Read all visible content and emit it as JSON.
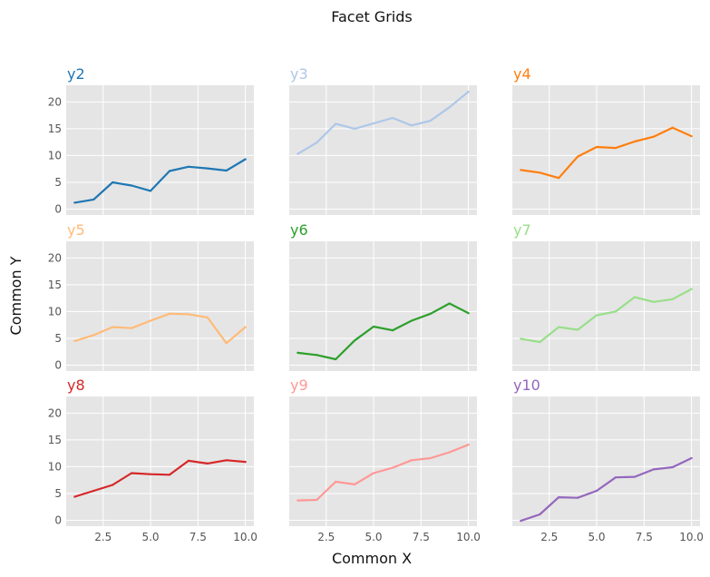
{
  "figure": {
    "title": "Facet Grids",
    "xlabel": "Common X",
    "ylabel": "Common Y",
    "background": "#e5e5e5",
    "grid_color": "#ffffff"
  },
  "chart_data": {
    "type": "line",
    "title": "Facet Grids",
    "xlabel": "Common X",
    "ylabel": "Common Y",
    "xlim": [
      0.55,
      10.45
    ],
    "ylim": [
      -1.1,
      23.1
    ],
    "xticks": [
      2.5,
      5.0,
      7.5,
      10.0
    ],
    "xtick_labels": [
      "2.5",
      "5.0",
      "7.5",
      "10.0"
    ],
    "yticks": [
      0,
      5,
      10,
      15,
      20
    ],
    "ytick_labels": [
      "0",
      "5",
      "10",
      "15",
      "20"
    ],
    "grid": true,
    "x": [
      1,
      2,
      3,
      4,
      5,
      6,
      7,
      8,
      9,
      10
    ],
    "series": [
      {
        "name": "y2",
        "color": "#1f77b4",
        "values": [
          1.2,
          1.8,
          5.0,
          4.4,
          3.4,
          7.1,
          7.9,
          7.6,
          7.2,
          9.3
        ]
      },
      {
        "name": "y3",
        "color": "#aec7e8",
        "values": [
          10.3,
          12.4,
          15.9,
          15.0,
          16.0,
          17.0,
          15.6,
          16.5,
          19.0,
          21.9
        ]
      },
      {
        "name": "y4",
        "color": "#ff7f0e",
        "values": [
          7.3,
          6.8,
          5.8,
          9.8,
          11.6,
          11.4,
          12.6,
          13.5,
          15.2,
          13.6
        ]
      },
      {
        "name": "y5",
        "color": "#ffbb78",
        "values": [
          4.5,
          5.6,
          7.1,
          6.9,
          8.3,
          9.6,
          9.5,
          8.9,
          4.1,
          7.1
        ]
      },
      {
        "name": "y6",
        "color": "#2ca02c",
        "values": [
          2.3,
          1.9,
          1.1,
          4.6,
          7.2,
          6.5,
          8.3,
          9.6,
          11.5,
          9.7
        ]
      },
      {
        "name": "y7",
        "color": "#98df8a",
        "values": [
          4.9,
          4.3,
          7.1,
          6.6,
          9.3,
          10.0,
          12.7,
          11.8,
          12.3,
          14.2
        ]
      },
      {
        "name": "y8",
        "color": "#d62728",
        "values": [
          4.4,
          5.5,
          6.6,
          8.8,
          8.6,
          8.5,
          11.1,
          10.6,
          11.2,
          10.9
        ]
      },
      {
        "name": "y9",
        "color": "#ff9896",
        "values": [
          3.7,
          3.8,
          7.2,
          6.7,
          8.8,
          9.8,
          11.2,
          11.6,
          12.7,
          14.1
        ]
      },
      {
        "name": "y10",
        "color": "#9467bd",
        "values": [
          -0.1,
          1.1,
          4.3,
          4.2,
          5.5,
          8.0,
          8.1,
          9.5,
          9.9,
          11.6
        ]
      }
    ]
  }
}
